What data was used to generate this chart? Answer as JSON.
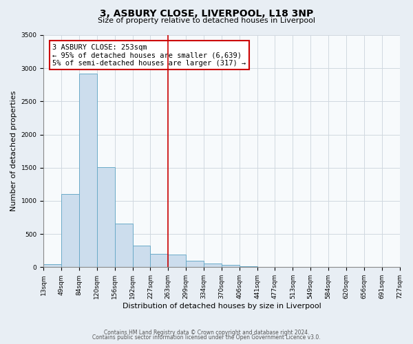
{
  "title": "3, ASBURY CLOSE, LIVERPOOL, L18 3NP",
  "subtitle": "Size of property relative to detached houses in Liverpool",
  "xlabel": "Distribution of detached houses by size in Liverpool",
  "ylabel": "Number of detached properties",
  "bin_labels": [
    "13sqm",
    "49sqm",
    "84sqm",
    "120sqm",
    "156sqm",
    "192sqm",
    "227sqm",
    "263sqm",
    "299sqm",
    "334sqm",
    "370sqm",
    "406sqm",
    "441sqm",
    "477sqm",
    "513sqm",
    "549sqm",
    "584sqm",
    "620sqm",
    "656sqm",
    "691sqm",
    "727sqm"
  ],
  "bar_heights": [
    50,
    1100,
    2920,
    1510,
    660,
    330,
    200,
    190,
    100,
    60,
    30,
    15,
    5,
    0,
    0,
    0,
    0,
    0,
    0,
    0
  ],
  "bar_color": "#ccdded",
  "bar_edge_color": "#6aaac8",
  "property_line_x": 7,
  "vline_color": "#cc0000",
  "annotation_text": "3 ASBURY CLOSE: 253sqm\n← 95% of detached houses are smaller (6,639)\n5% of semi-detached houses are larger (317) →",
  "annotation_box_facecolor": "#ffffff",
  "annotation_box_edgecolor": "#cc0000",
  "ylim": [
    0,
    3500
  ],
  "yticks": [
    0,
    500,
    1000,
    1500,
    2000,
    2500,
    3000,
    3500
  ],
  "footer_line1": "Contains HM Land Registry data © Crown copyright and database right 2024.",
  "footer_line2": "Contains public sector information licensed under the Open Government Licence v3.0.",
  "background_color": "#e8eef4",
  "plot_background_color": "#f7fafc",
  "grid_color": "#d0d8e0",
  "title_fontsize": 10,
  "subtitle_fontsize": 8,
  "axis_label_fontsize": 8,
  "tick_fontsize": 6.5,
  "annotation_fontsize": 7.5,
  "footer_fontsize": 5.5
}
